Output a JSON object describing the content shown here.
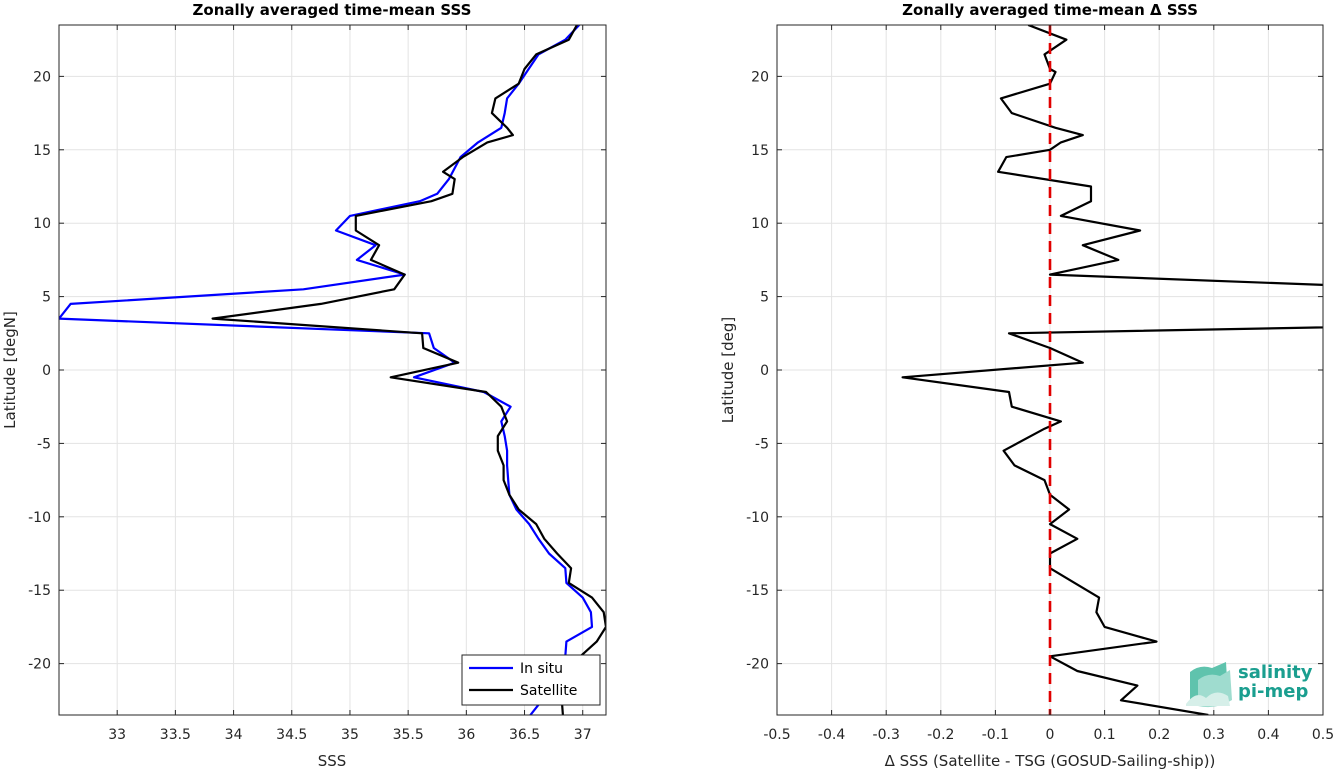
{
  "chart_data": [
    {
      "type": "line",
      "title": "Zonally averaged time-mean SSS",
      "xlabel": "SSS",
      "ylabel": "Latitude [degN]",
      "xlim": [
        32.5,
        37.2
      ],
      "ylim": [
        -23.5,
        23.5
      ],
      "xticks": [
        "33",
        "33.5",
        "34",
        "34.5",
        "35",
        "35.5",
        "36",
        "36.5",
        "37"
      ],
      "yticks": [
        "20",
        "15",
        "10",
        "5",
        "0",
        "-5",
        "-10",
        "-15",
        "-20"
      ],
      "grid": true,
      "legend_position": "bottom-right",
      "series": [
        {
          "name": "In situ",
          "color": "#0000ff",
          "points": [
            [
              36.97,
              23.5
            ],
            [
              36.85,
              22.5
            ],
            [
              36.62,
              21.5
            ],
            [
              36.45,
              19.5
            ],
            [
              36.35,
              18.5
            ],
            [
              36.33,
              17.5
            ],
            [
              36.3,
              16.5
            ],
            [
              36.1,
              15.5
            ],
            [
              35.95,
              14.5
            ],
            [
              35.85,
              13
            ],
            [
              35.75,
              12
            ],
            [
              35.6,
              11.5
            ],
            [
              35.0,
              10.5
            ],
            [
              34.88,
              9.5
            ],
            [
              35.22,
              8.5
            ],
            [
              35.06,
              7.5
            ],
            [
              35.47,
              6.5
            ],
            [
              34.6,
              5.5
            ],
            [
              32.6,
              4.5
            ],
            [
              32.5,
              3.5
            ],
            [
              35.68,
              2.5
            ],
            [
              35.72,
              1.5
            ],
            [
              35.9,
              0.5
            ],
            [
              35.55,
              -0.5
            ],
            [
              36.15,
              -1.5
            ],
            [
              36.38,
              -2.5
            ],
            [
              36.3,
              -3.5
            ],
            [
              36.33,
              -4.5
            ],
            [
              36.35,
              -5.5
            ],
            [
              36.35,
              -6.5
            ],
            [
              36.36,
              -7.5
            ],
            [
              36.37,
              -8.5
            ],
            [
              36.43,
              -9.5
            ],
            [
              36.54,
              -10.5
            ],
            [
              36.62,
              -11.5
            ],
            [
              36.71,
              -12.5
            ],
            [
              36.85,
              -13.5
            ],
            [
              36.86,
              -14.5
            ],
            [
              37.0,
              -15.5
            ],
            [
              37.07,
              -16.5
            ],
            [
              37.08,
              -17.5
            ],
            [
              36.86,
              -18.5
            ],
            [
              36.85,
              -19.5
            ],
            [
              36.82,
              -20.5
            ],
            [
              36.76,
              -21.5
            ],
            [
              36.65,
              -22.5
            ],
            [
              36.55,
              -23.5
            ]
          ]
        },
        {
          "name": "Satellite",
          "color": "#000000",
          "points": [
            [
              36.95,
              23.5
            ],
            [
              36.88,
              22.5
            ],
            [
              36.6,
              21.5
            ],
            [
              36.5,
              20.5
            ],
            [
              36.45,
              19.5
            ],
            [
              36.25,
              18.5
            ],
            [
              36.22,
              17.5
            ],
            [
              36.35,
              16.5
            ],
            [
              36.4,
              16
            ],
            [
              36.18,
              15.5
            ],
            [
              35.97,
              14.5
            ],
            [
              35.8,
              13.5
            ],
            [
              35.9,
              13
            ],
            [
              35.88,
              12
            ],
            [
              35.7,
              11.5
            ],
            [
              35.05,
              10.5
            ],
            [
              35.05,
              9.5
            ],
            [
              35.25,
              8.5
            ],
            [
              35.18,
              7.5
            ],
            [
              35.47,
              6.5
            ],
            [
              35.38,
              5.5
            ],
            [
              34.75,
              4.5
            ],
            [
              33.82,
              3.5
            ],
            [
              35.62,
              2.5
            ],
            [
              35.63,
              1.5
            ],
            [
              35.93,
              0.5
            ],
            [
              35.35,
              -0.5
            ],
            [
              36.17,
              -1.5
            ],
            [
              36.3,
              -2.5
            ],
            [
              36.35,
              -3.5
            ],
            [
              36.27,
              -4.5
            ],
            [
              36.27,
              -5.5
            ],
            [
              36.32,
              -6.5
            ],
            [
              36.32,
              -7.5
            ],
            [
              36.37,
              -8.5
            ],
            [
              36.45,
              -9.5
            ],
            [
              36.6,
              -10.5
            ],
            [
              36.67,
              -11.5
            ],
            [
              36.78,
              -12.5
            ],
            [
              36.9,
              -13.5
            ],
            [
              36.88,
              -14.5
            ],
            [
              37.08,
              -15.5
            ],
            [
              37.18,
              -16.5
            ],
            [
              37.2,
              -17.5
            ],
            [
              37.12,
              -18.5
            ],
            [
              36.98,
              -19.5
            ],
            [
              36.88,
              -20.5
            ],
            [
              36.83,
              -21.5
            ],
            [
              36.82,
              -22.5
            ],
            [
              36.83,
              -23.5
            ]
          ]
        }
      ]
    },
    {
      "type": "line",
      "title": "Zonally averaged time-mean Δ SSS",
      "xlabel": "Δ SSS (Satellite - TSG (GOSUD-Sailing-ship))",
      "ylabel": "Latitude [deg]",
      "xlim": [
        -0.5,
        0.5
      ],
      "ylim": [
        -23.5,
        23.5
      ],
      "xticks": [
        "-0.5",
        "-0.4",
        "-0.3",
        "-0.2",
        "-0.1",
        "0",
        "0.1",
        "0.2",
        "0.3",
        "0.4",
        "0.5"
      ],
      "yticks": [
        "20",
        "15",
        "10",
        "5",
        "0",
        "-5",
        "-10",
        "-15",
        "-20"
      ],
      "grid": true,
      "reference_line": {
        "x": 0,
        "color": "#e00000",
        "style": "dashed"
      },
      "series": [
        {
          "color": "#000000",
          "points": [
            [
              -0.04,
              23.5
            ],
            [
              0.03,
              22.5
            ],
            [
              -0.01,
              21.5
            ],
            [
              0.0,
              20.5
            ],
            [
              0.01,
              20.3
            ],
            [
              0.0,
              19.5
            ],
            [
              -0.09,
              18.5
            ],
            [
              -0.07,
              17.5
            ],
            [
              0.01,
              16.5
            ],
            [
              0.06,
              16
            ],
            [
              0.02,
              15.5
            ],
            [
              0.0,
              15
            ],
            [
              -0.08,
              14.5
            ],
            [
              -0.095,
              13.5
            ],
            [
              0.075,
              12.5
            ],
            [
              0.075,
              11.5
            ],
            [
              0.02,
              10.5
            ],
            [
              0.165,
              9.5
            ],
            [
              0.06,
              8.5
            ],
            [
              0.125,
              7.5
            ],
            [
              0.0,
              6.5
            ],
            [
              0.5,
              5.8
            ],
            [
              0.53,
              5.5
            ],
            [
              0.53,
              3.5
            ],
            [
              0.5,
              2.9
            ],
            [
              -0.075,
              2.5
            ],
            [
              0.0,
              1.5
            ],
            [
              0.06,
              0.5
            ],
            [
              -0.27,
              -0.5
            ],
            [
              -0.075,
              -1.5
            ],
            [
              -0.07,
              -2.5
            ],
            [
              0.02,
              -3.5
            ],
            [
              -0.01,
              -4
            ],
            [
              -0.085,
              -5.5
            ],
            [
              -0.065,
              -6.5
            ],
            [
              -0.01,
              -7.5
            ],
            [
              0.0,
              -8.5
            ],
            [
              0.035,
              -9.5
            ],
            [
              0.0,
              -10.5
            ],
            [
              0.05,
              -11.5
            ],
            [
              0.0,
              -12.5
            ],
            [
              0.0,
              -13.5
            ],
            [
              0.045,
              -14.5
            ],
            [
              0.09,
              -15.5
            ],
            [
              0.085,
              -16.5
            ],
            [
              0.1,
              -17.5
            ],
            [
              0.195,
              -18.5
            ],
            [
              0.0,
              -19.5
            ],
            [
              0.05,
              -20.5
            ],
            [
              0.16,
              -21.5
            ],
            [
              0.13,
              -22.5
            ],
            [
              0.29,
              -23.5
            ]
          ]
        }
      ]
    }
  ],
  "legend": {
    "items": [
      "In situ",
      "Satellite"
    ]
  },
  "logo": {
    "line1": "salinity",
    "line2": "pi-mep"
  }
}
